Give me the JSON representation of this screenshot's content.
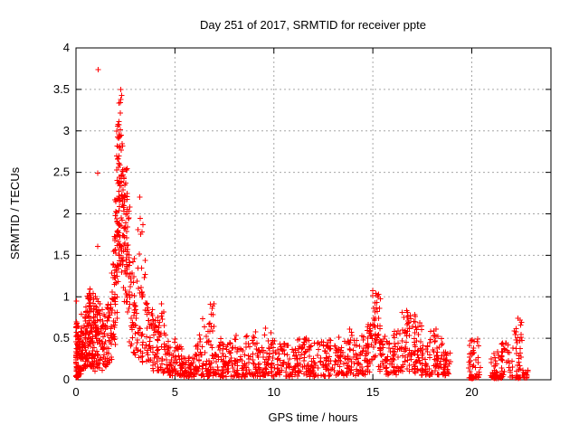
{
  "title": "Day 251 of 2017, SRMTID for receiver ppte",
  "chart_data": {
    "type": "scatter",
    "title": "Day 251 of 2017, SRMTID for receiver ppte",
    "xlabel": "GPS time / hours",
    "ylabel": "SRMTID / TECUs",
    "xlim": [
      0,
      24
    ],
    "ylim": [
      0,
      4
    ],
    "xticks": [
      0,
      5,
      10,
      15,
      20
    ],
    "yticks": [
      0,
      0.5,
      1,
      1.5,
      2,
      2.5,
      3,
      3.5,
      4
    ],
    "grid": true,
    "legend": "none",
    "marker": "plus",
    "marker_color": "#ff0000",
    "grid_color": "#a6a6a6",
    "border_color": "#000000",
    "seed": 20170251,
    "notable_points": [
      [
        1.13,
        3.74
      ],
      [
        2.25,
        3.53
      ],
      [
        15.15,
        1.1
      ],
      [
        16.6,
        0.85
      ],
      [
        22.4,
        0.75
      ],
      [
        0.55,
        1.1
      ]
    ],
    "outliers": [
      [
        1.13,
        3.74
      ],
      [
        1.1,
        2.49
      ],
      [
        1.1,
        1.61
      ],
      [
        0.02,
        0.95
      ],
      [
        0.04,
        0.68
      ]
    ],
    "clusters": [
      [
        0.0,
        0.12,
        55,
        0.02,
        0.72,
        1.0
      ],
      [
        0.05,
        0.3,
        40,
        0.05,
        0.55,
        1.5
      ],
      [
        0.25,
        0.5,
        45,
        0.1,
        0.8,
        1.2
      ],
      [
        0.45,
        0.7,
        50,
        0.15,
        1.05,
        1.1
      ],
      [
        0.65,
        0.9,
        50,
        0.15,
        1.1,
        1.2
      ],
      [
        0.85,
        1.1,
        45,
        0.1,
        1.05,
        1.3
      ],
      [
        1.05,
        1.35,
        40,
        0.1,
        0.95,
        1.3
      ],
      [
        1.3,
        1.6,
        35,
        0.15,
        0.8,
        1.2
      ],
      [
        1.55,
        1.85,
        35,
        0.2,
        1.0,
        1.0
      ],
      [
        1.8,
        2.0,
        30,
        0.4,
        1.6,
        0.9
      ],
      [
        1.95,
        2.1,
        30,
        0.6,
        2.2,
        0.8
      ],
      [
        2.05,
        2.2,
        35,
        0.9,
        3.2,
        0.7
      ],
      [
        2.15,
        2.32,
        40,
        1.2,
        3.53,
        0.7
      ],
      [
        2.28,
        2.45,
        35,
        1.2,
        2.9,
        0.8
      ],
      [
        2.4,
        2.6,
        35,
        0.9,
        2.55,
        0.8
      ],
      [
        2.55,
        2.75,
        30,
        0.6,
        2.1,
        0.9
      ],
      [
        2.7,
        2.95,
        25,
        0.4,
        1.5,
        1.0
      ],
      [
        2.9,
        3.15,
        22,
        0.3,
        1.2,
        1.0
      ],
      [
        3.1,
        3.4,
        25,
        0.25,
        2.3,
        1.6
      ],
      [
        3.35,
        3.65,
        22,
        0.2,
        1.5,
        1.5
      ],
      [
        3.6,
        3.9,
        25,
        0.15,
        0.95,
        1.2
      ],
      [
        3.85,
        4.15,
        25,
        0.1,
        0.8,
        1.2
      ],
      [
        4.1,
        4.45,
        28,
        0.1,
        0.92,
        1.3
      ],
      [
        4.4,
        4.75,
        25,
        0.08,
        0.6,
        1.4
      ],
      [
        4.7,
        5.05,
        28,
        0.05,
        0.5,
        1.5
      ],
      [
        5.0,
        5.4,
        30,
        0.04,
        0.42,
        1.6
      ],
      [
        5.35,
        5.75,
        28,
        0.03,
        0.3,
        1.6
      ],
      [
        5.7,
        6.1,
        30,
        0.03,
        0.35,
        1.6
      ],
      [
        6.05,
        6.45,
        30,
        0.04,
        0.55,
        1.7
      ],
      [
        6.4,
        6.8,
        32,
        0.04,
        0.75,
        1.8
      ],
      [
        6.75,
        7.1,
        32,
        0.05,
        0.93,
        1.9
      ],
      [
        7.05,
        7.45,
        30,
        0.04,
        0.5,
        1.7
      ],
      [
        7.4,
        7.8,
        30,
        0.03,
        0.45,
        1.6
      ],
      [
        7.75,
        8.2,
        32,
        0.04,
        0.55,
        1.6
      ],
      [
        8.15,
        8.6,
        30,
        0.03,
        0.4,
        1.6
      ],
      [
        8.55,
        9.1,
        35,
        0.04,
        0.6,
        1.7
      ],
      [
        9.05,
        9.5,
        32,
        0.04,
        0.5,
        1.6
      ],
      [
        9.45,
        9.9,
        32,
        0.05,
        0.62,
        1.7
      ],
      [
        9.85,
        10.35,
        34,
        0.04,
        0.5,
        1.6
      ],
      [
        10.3,
        10.8,
        34,
        0.04,
        0.45,
        1.5
      ],
      [
        10.75,
        11.3,
        36,
        0.04,
        0.5,
        1.6
      ],
      [
        11.25,
        11.8,
        36,
        0.04,
        0.52,
        1.6
      ],
      [
        11.75,
        12.3,
        36,
        0.04,
        0.45,
        1.5
      ],
      [
        12.25,
        12.8,
        36,
        0.04,
        0.48,
        1.6
      ],
      [
        12.75,
        13.3,
        36,
        0.05,
        0.5,
        1.5
      ],
      [
        13.25,
        13.8,
        36,
        0.05,
        0.55,
        1.5
      ],
      [
        13.75,
        14.3,
        38,
        0.05,
        0.62,
        1.5
      ],
      [
        14.25,
        14.75,
        36,
        0.06,
        0.6,
        1.4
      ],
      [
        14.7,
        15.0,
        25,
        0.08,
        0.7,
        1.2
      ],
      [
        14.95,
        15.4,
        45,
        0.15,
        1.1,
        0.9
      ],
      [
        15.35,
        15.7,
        25,
        0.08,
        0.55,
        1.2
      ],
      [
        15.65,
        16.1,
        30,
        0.05,
        0.5,
        1.4
      ],
      [
        16.05,
        16.5,
        30,
        0.06,
        0.6,
        1.3
      ],
      [
        16.45,
        16.85,
        35,
        0.1,
        0.85,
        1.1
      ],
      [
        16.8,
        17.15,
        30,
        0.08,
        0.8,
        1.2
      ],
      [
        17.1,
        17.5,
        30,
        0.08,
        0.72,
        1.3
      ],
      [
        17.45,
        17.9,
        30,
        0.05,
        0.45,
        1.4
      ],
      [
        17.85,
        18.3,
        32,
        0.06,
        0.62,
        1.3
      ],
      [
        18.25,
        18.65,
        28,
        0.05,
        0.5,
        1.4
      ],
      [
        18.6,
        19.0,
        22,
        0.04,
        0.35,
        1.4
      ],
      [
        19.85,
        20.45,
        45,
        0.02,
        0.55,
        1.8
      ],
      [
        19.95,
        20.15,
        15,
        0.015,
        0.035,
        1.0
      ],
      [
        20.95,
        21.55,
        40,
        0.02,
        0.4,
        2.0
      ],
      [
        21.0,
        21.45,
        25,
        0.015,
        0.035,
        1.0
      ],
      [
        21.5,
        22.1,
        35,
        0.03,
        0.45,
        1.6
      ],
      [
        22.15,
        22.55,
        30,
        0.05,
        0.75,
        1.1
      ],
      [
        22.2,
        22.45,
        12,
        0.015,
        0.035,
        1.0
      ],
      [
        22.55,
        22.85,
        15,
        0.02,
        0.12,
        1.5
      ]
    ]
  }
}
